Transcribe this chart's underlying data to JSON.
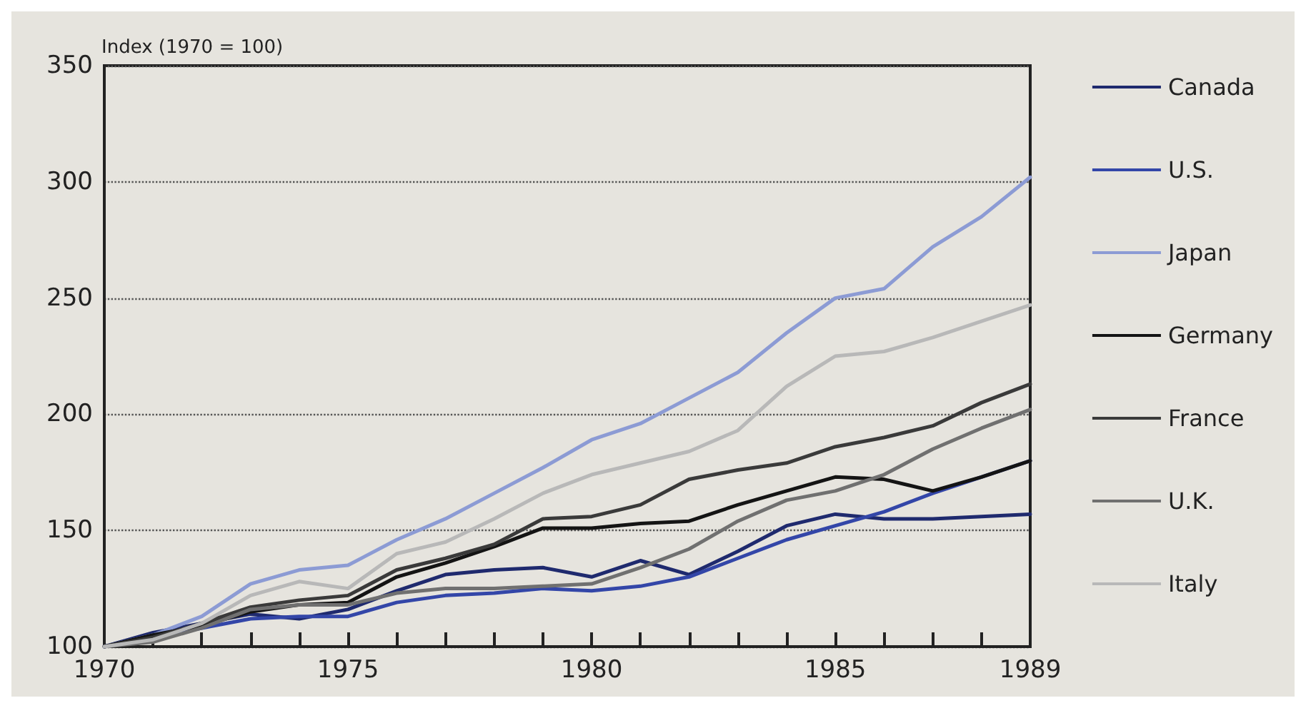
{
  "chart_data": {
    "type": "line",
    "ylabel": "Index (1970 = 100)",
    "x": [
      1970,
      1971,
      1972,
      1973,
      1974,
      1975,
      1976,
      1977,
      1978,
      1979,
      1980,
      1981,
      1982,
      1983,
      1984,
      1985,
      1986,
      1987,
      1988,
      1989
    ],
    "xlim": [
      1970,
      1989
    ],
    "xticks": [
      1970,
      {
        "value": 1971,
        "label": null
      },
      {
        "value": 1972,
        "label": null
      },
      {
        "value": 1973,
        "label": null
      },
      {
        "value": 1974,
        "label": null
      },
      1975,
      {
        "value": 1976,
        "label": null
      },
      {
        "value": 1977,
        "label": null
      },
      {
        "value": 1978,
        "label": null
      },
      {
        "value": 1979,
        "label": null
      },
      1980,
      {
        "value": 1981,
        "label": null
      },
      {
        "value": 1982,
        "label": null
      },
      {
        "value": 1983,
        "label": null
      },
      {
        "value": 1984,
        "label": null
      },
      1985,
      {
        "value": 1986,
        "label": null
      },
      {
        "value": 1987,
        "label": null
      },
      {
        "value": 1988,
        "label": null
      },
      1989
    ],
    "ylim": [
      100,
      350
    ],
    "yticks": [
      100,
      150,
      200,
      250,
      300,
      350
    ],
    "grid": "y",
    "legend": "right",
    "marker": "none",
    "line_style": "solid",
    "series": [
      {
        "name": "Canada",
        "color": "#1f2a6e",
        "values": [
          100,
          106,
          110,
          114,
          112,
          116,
          124,
          131,
          133,
          134,
          130,
          137,
          131,
          141,
          152,
          157,
          155,
          155,
          156,
          157
        ]
      },
      {
        "name": "U.S.",
        "color": "#3346a8",
        "values": [
          100,
          104,
          108,
          112,
          113,
          113,
          119,
          122,
          123,
          125,
          124,
          126,
          130,
          138,
          146,
          152,
          158,
          166,
          173,
          180
        ]
      },
      {
        "name": "Japan",
        "color": "#8c9bd4",
        "values": [
          100,
          105,
          113,
          127,
          133,
          135,
          146,
          155,
          166,
          177,
          189,
          196,
          207,
          218,
          235,
          250,
          254,
          272,
          285,
          302
        ]
      },
      {
        "name": "Germany",
        "color": "#141414",
        "values": [
          100,
          105,
          109,
          115,
          118,
          119,
          130,
          136,
          143,
          151,
          151,
          153,
          154,
          161,
          167,
          173,
          172,
          167,
          173,
          180
        ]
      },
      {
        "name": "France",
        "color": "#3a3a3a",
        "values": [
          100,
          104,
          110,
          117,
          120,
          122,
          133,
          138,
          144,
          155,
          156,
          161,
          172,
          176,
          179,
          186,
          190,
          195,
          205,
          213
        ]
      },
      {
        "name": "U.K.",
        "color": "#707070",
        "values": [
          100,
          102,
          108,
          116,
          118,
          118,
          123,
          125,
          125,
          126,
          127,
          134,
          142,
          154,
          163,
          167,
          174,
          185,
          194,
          202
        ]
      },
      {
        "name": "Italy",
        "color": "#b8b8b8",
        "values": [
          100,
          103,
          110,
          122,
          128,
          125,
          140,
          145,
          155,
          166,
          174,
          179,
          184,
          193,
          212,
          225,
          227,
          233,
          240,
          247
        ]
      }
    ]
  }
}
